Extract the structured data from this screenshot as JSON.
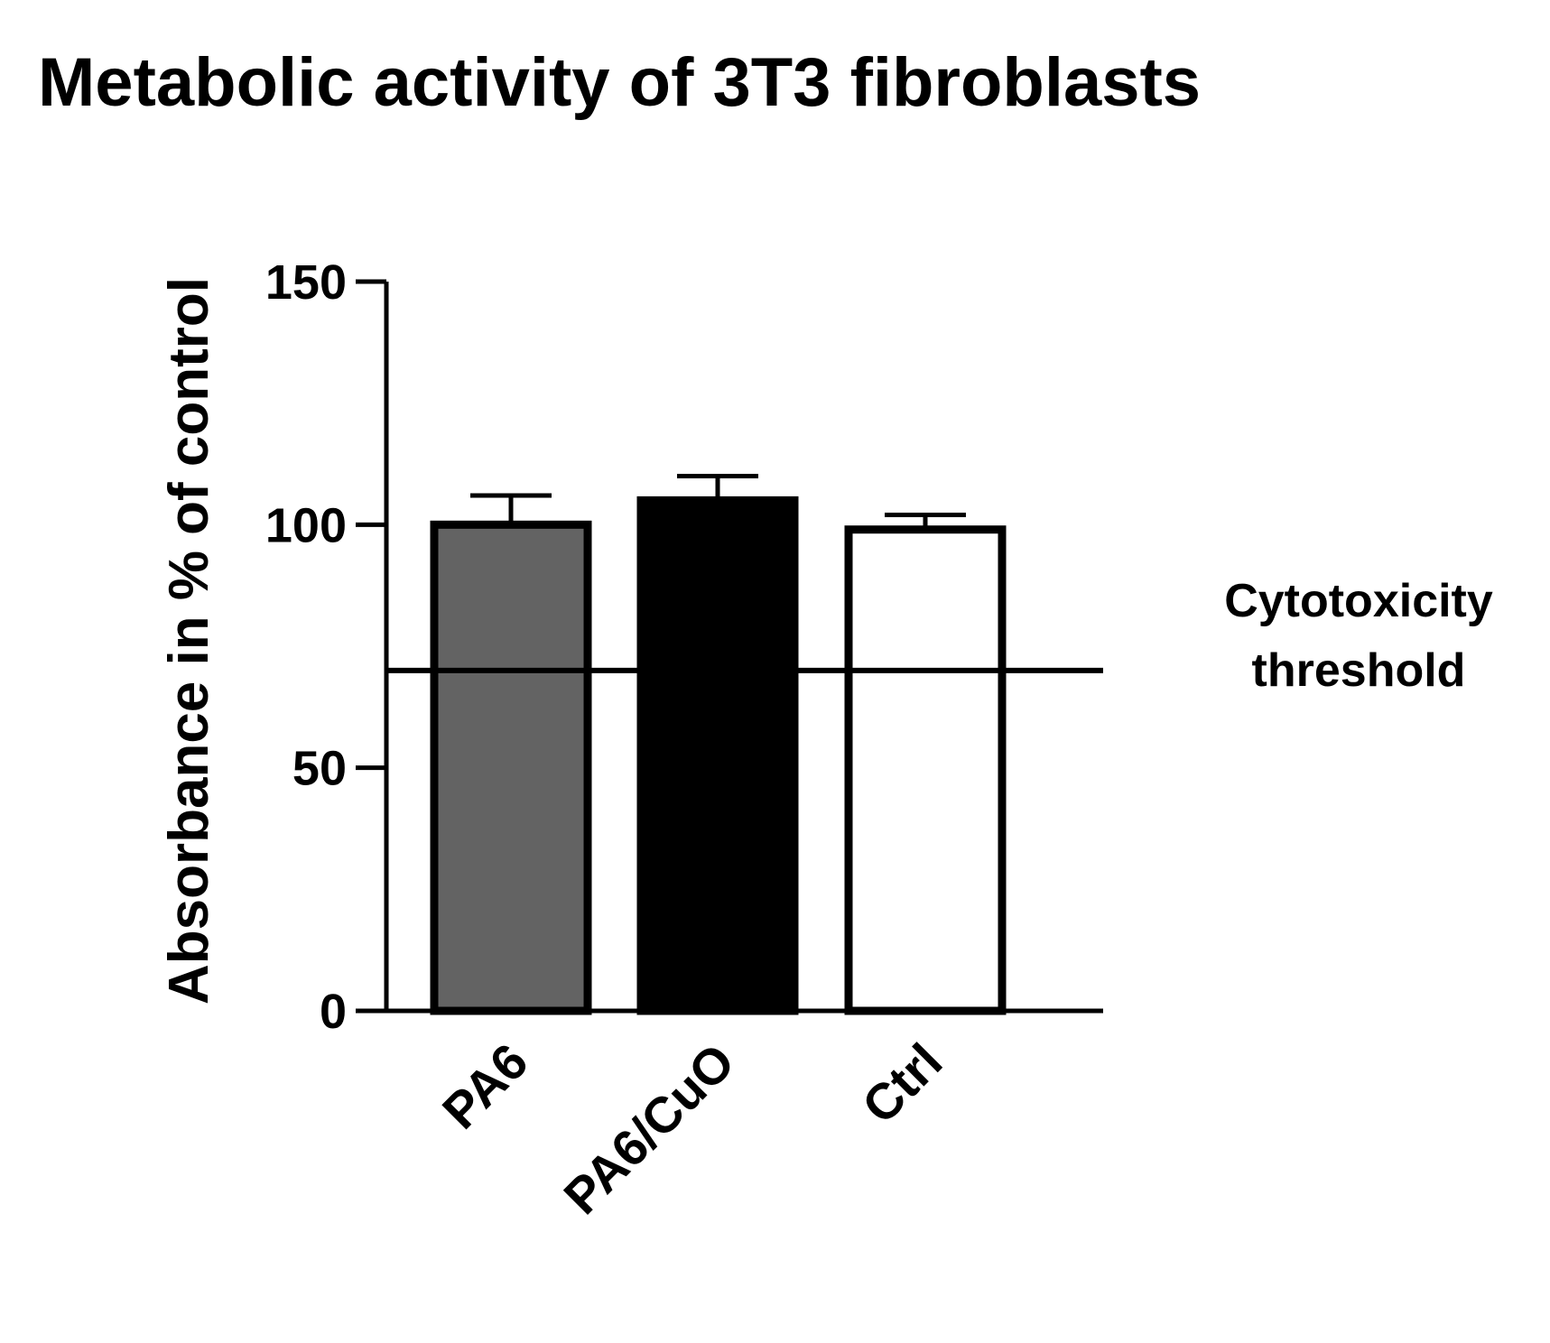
{
  "chart_data": {
    "type": "bar",
    "title": "Metabolic activity of 3T3 fibroblasts",
    "xlabel": "",
    "ylabel": "Absorbance in % of control",
    "ylim": [
      0,
      150
    ],
    "yticks": [
      0,
      50,
      100,
      150
    ],
    "categories": [
      "PA6",
      "PA6/CuO",
      "Ctrl"
    ],
    "values": [
      100,
      105,
      99
    ],
    "errors": [
      6,
      5,
      3
    ],
    "bar_colors": [
      "#636363",
      "#000000",
      "#ffffff"
    ],
    "bar_edge_color": "#000000",
    "threshold": {
      "value": 70,
      "label_lines": [
        "Cytotoxicity",
        "threshold"
      ]
    },
    "grid": false,
    "legend": "none"
  }
}
